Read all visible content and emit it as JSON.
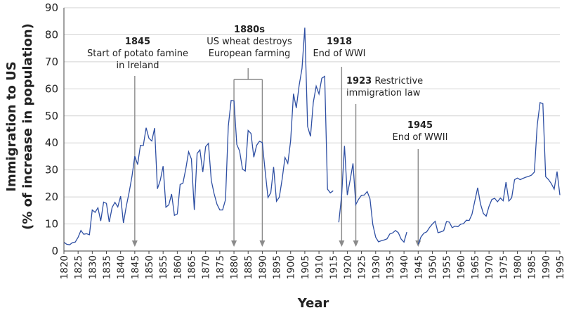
{
  "chart_data": {
    "type": "line",
    "xlabel": "Year",
    "ylabel_line1": "Immigration to US",
    "ylabel_line2": "(% of increase in population)",
    "xlim": [
      1820,
      1995
    ],
    "ylim": [
      0,
      90
    ],
    "yticks": [
      0,
      10,
      20,
      30,
      40,
      50,
      60,
      70,
      80,
      90
    ],
    "xticks": [
      1820,
      1825,
      1830,
      1835,
      1840,
      1845,
      1850,
      1855,
      1860,
      1865,
      1870,
      1875,
      1880,
      1885,
      1890,
      1895,
      1900,
      1905,
      1910,
      1915,
      1920,
      1925,
      1930,
      1935,
      1940,
      1945,
      1950,
      1955,
      1960,
      1965,
      1970,
      1975,
      1980,
      1985,
      1990,
      1995
    ],
    "grid": "horizontal",
    "line_color": "#2e4fa3",
    "series": [
      {
        "segments": [
          {
            "x": [
              1820,
              1821,
              1822,
              1823,
              1824,
              1825,
              1826,
              1827,
              1828,
              1829,
              1830,
              1831,
              1832,
              1833,
              1834,
              1835,
              1836,
              1837,
              1838,
              1839,
              1840,
              1841,
              1842,
              1843,
              1844,
              1845,
              1846,
              1847,
              1848,
              1849,
              1850,
              1851,
              1852,
              1853,
              1854,
              1855,
              1856,
              1857,
              1858,
              1859,
              1860,
              1861,
              1862,
              1863,
              1864,
              1865,
              1866,
              1867,
              1868,
              1869,
              1870,
              1871,
              1872,
              1873,
              1874,
              1875,
              1876,
              1877,
              1878,
              1879,
              1880,
              1881,
              1882,
              1883,
              1884,
              1885,
              1886,
              1887,
              1888,
              1889,
              1890,
              1891,
              1892,
              1893,
              1894,
              1895,
              1896,
              1897,
              1898,
              1899,
              1900,
              1901,
              1902,
              1903,
              1904,
              1905,
              1906,
              1907,
              1908,
              1909,
              1910,
              1911,
              1912,
              1913,
              1914,
              1915,
              1916,
              1917,
              1918,
              1919,
              1920,
              1921,
              1922,
              1923,
              1924,
              1925,
              1926,
              1927,
              1928,
              1929,
              1930,
              1931,
              1932,
              1933,
              1934,
              1935,
              1936,
              1937,
              1938,
              1939,
              1940,
              1941
            ],
            "y": [
              3.2,
              2.5,
              2.3,
              3.1,
              3.3,
              5.1,
              7.6,
              6.2,
              6.4,
              6.0,
              15.2,
              14.3,
              16.0,
              11.1,
              18.1,
              17.6,
              10.7,
              16.1,
              18.0,
              16.3,
              20.3,
              10.4,
              16.6,
              21.7,
              27.5,
              35.1,
              32.0,
              39.1,
              39.0,
              45.6,
              41.7,
              40.7,
              45.5,
              23.0,
              26.2,
              31.4,
              16.2,
              17.1,
              21.1,
              13.2,
              13.7,
              24.6,
              25.1,
              30.4,
              36.7,
              34.0,
              15.2,
              36.1,
              37.4,
              29.2,
              38.6,
              39.8,
              26.1,
              21.2,
              17.3,
              15.2,
              15.2,
              19.0,
              46.2,
              55.7,
              55.5,
              39.4,
              37.0,
              30.3,
              29.6,
              44.6,
              43.5,
              34.7,
              39.1,
              40.6,
              40.1,
              29.7,
              19.8,
              21.6,
              31.1,
              18.4,
              19.9,
              26.5,
              34.6,
              32.4,
              40.7,
              58.2,
              52.9,
              61.2,
              67.5,
              82.6,
              46.1,
              42.4,
              55.0,
              61.0,
              58.1,
              63.9,
              64.6,
              22.9,
              21.5,
              22.3,
              null,
              10.6,
              20.7,
              38.9,
              20.7,
              26.3,
              32.4,
              17.2,
              19.2,
              20.6,
              20.7,
              22.0,
              19.3,
              9.8,
              5.1,
              3.4,
              3.8,
              4.1,
              4.5,
              6.3,
              6.7,
              7.6,
              6.8,
              4.4,
              3.3,
              7.0
            ]
          },
          {
            "x": [
              1945,
              1946,
              1947,
              1948,
              1949,
              1950,
              1951,
              1952,
              1953,
              1954,
              1955,
              1956,
              1957,
              1958,
              1959,
              1960,
              1961,
              1962,
              1963,
              1964,
              1965,
              1966,
              1967,
              1968,
              1969,
              1970,
              1971,
              1972,
              1973,
              1974,
              1975,
              1976,
              1977,
              1978,
              1979,
              1980,
              1981,
              1982,
              1983,
              1984,
              1985,
              1986,
              1987,
              1988,
              1989,
              1990,
              1991,
              1992,
              1993,
              1994,
              1995
            ],
            "y": [
              2.5,
              5.2,
              6.6,
              7.1,
              8.7,
              10.0,
              11.0,
              6.8,
              7.1,
              7.5,
              10.9,
              10.7,
              8.6,
              9.2,
              9.0,
              9.9,
              10.1,
              11.4,
              11.3,
              13.6,
              18.6,
              23.4,
              17.4,
              13.9,
              12.9,
              16.5,
              19.1,
              19.5,
              18.2,
              19.6,
              18.6,
              25.5,
              18.5,
              19.7,
              26.4,
              27.0,
              26.4,
              26.9,
              27.3,
              27.6,
              28.1,
              29.2,
              46.4,
              54.9,
              54.5,
              27.5,
              26.4,
              24.9,
              22.9,
              29.4,
              20.7
            ]
          }
        ]
      }
    ],
    "annotations": [
      {
        "year": 1845,
        "bold": "1845",
        "lines": [
          "Start of potato famine",
          "in Ireland"
        ]
      },
      {
        "years": [
          1880,
          1890
        ],
        "bold": "1880s",
        "lines": [
          "US wheat destroys",
          "European farming"
        ]
      },
      {
        "year": 1918,
        "bold": "1918",
        "lines": [
          "End of WWI"
        ]
      },
      {
        "year": 1923,
        "bold": "1923",
        "inline": "Restrictive",
        "lines": [
          "immigration law"
        ]
      },
      {
        "year": 1945,
        "bold": "1945",
        "lines": [
          "End of WWII"
        ]
      }
    ]
  }
}
